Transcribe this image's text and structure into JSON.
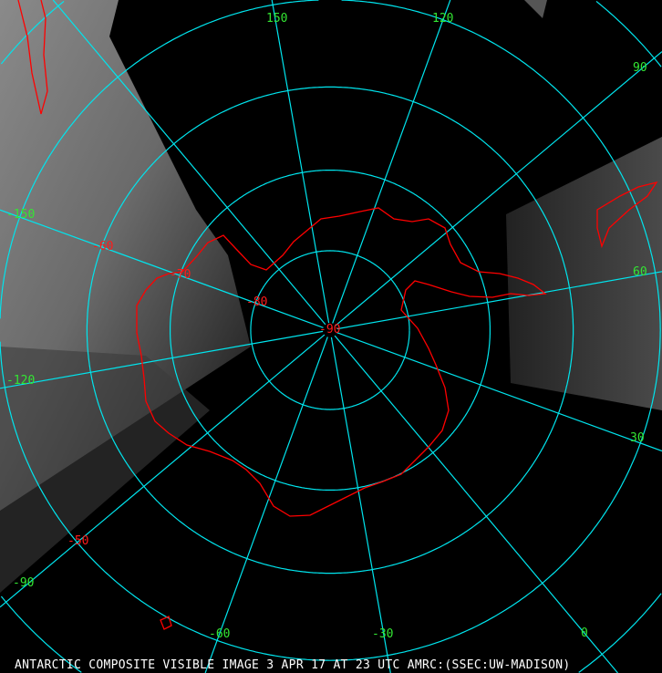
{
  "map": {
    "projection": "polar stereographic (south pole)",
    "colors": {
      "graticule": "#00e5ee",
      "coastline": "#ff0000",
      "longitude_labels": "#33e633",
      "latitude_labels": "#ff1a1a",
      "caption": "#ffffff"
    },
    "longitude_labels": [
      "150",
      "120",
      "90",
      "60",
      "30",
      "0",
      "-30",
      "-60",
      "-90",
      "-120",
      "-150"
    ],
    "latitude_labels": [
      "-90",
      "-80",
      "-70",
      "-60",
      "-50"
    ]
  },
  "caption": "ANTARCTIC COMPOSITE VISIBLE IMAGE 3 APR 17 AT 23 UTC AMRC:(SSEC:UW-MADISON)"
}
